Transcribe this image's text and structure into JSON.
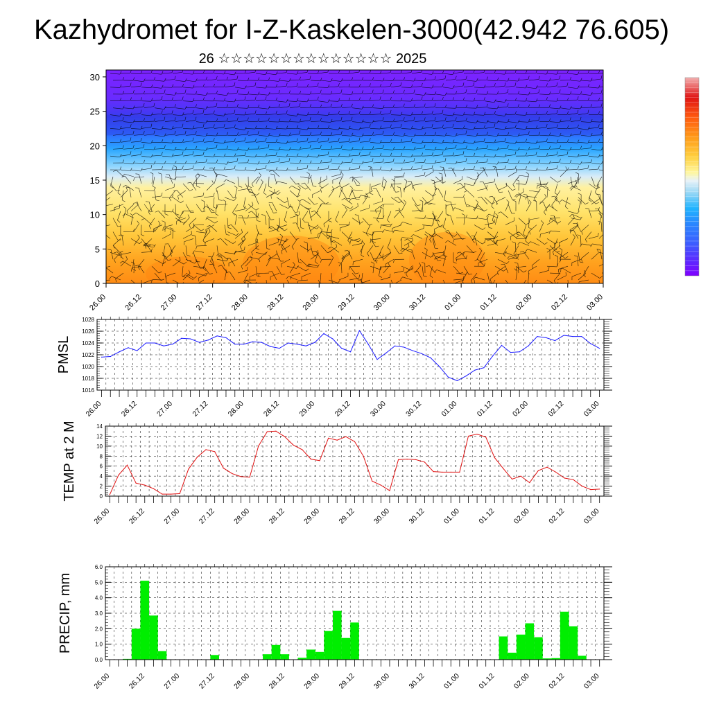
{
  "title": "Kazhydromet for I-Z-Kaskelen-3000(42.942 76.605)",
  "subtitle": "26 ☆☆☆☆☆☆☆☆☆☆☆☆☆☆ 2025",
  "chart_data": [
    {
      "type": "heatmap",
      "description_key": "cross_section",
      "x_tick_labels": [
        "26.00",
        "26.12",
        "27.00",
        "27.12",
        "28.00",
        "28.12",
        "29.00",
        "29.12",
        "30.00",
        "30.12",
        "01.00",
        "01.12",
        "02.00",
        "02.12",
        "03.00"
      ],
      "y_ticks": [
        0,
        5,
        10,
        15,
        20,
        25,
        30
      ],
      "ylim": [
        0,
        31
      ],
      "colorbar": [
        "#7f00ff",
        "#5a2bff",
        "#3d5bff",
        "#2a86ff",
        "#1fb3ff",
        "#62d2ff",
        "#c8eafb",
        "#fff7a0",
        "#ffe860",
        "#ffd040",
        "#ffb020",
        "#ff8a10",
        "#ff5a10",
        "#ee2a10",
        "#d81010",
        "#f0a0a0"
      ],
      "colors": {
        "low_level_warm": "#ff9a1e",
        "mid_level": "#ffea7a",
        "upper_cold": "#5a2bff",
        "top": "#7f22ff"
      }
    },
    {
      "type": "line",
      "ylabel": "PMSL",
      "ylim": [
        1016,
        1028
      ],
      "y_ticks": [
        1016,
        1018,
        1020,
        1022,
        1024,
        1026,
        1028
      ],
      "x_tick_labels": [
        "26.00",
        "26.12",
        "27.00",
        "27.12",
        "28.00",
        "28.12",
        "29.00",
        "29.12",
        "30.00",
        "30.12",
        "01.00",
        "01.12",
        "02.00",
        "02.12",
        "03.00"
      ],
      "line_color": "#1a1aff",
      "series": [
        {
          "values": [
            1021.6,
            1021.7,
            1022.5,
            1023.2,
            1022.7,
            1024.0,
            1024.0,
            1023.5,
            1023.8,
            1024.8,
            1024.7,
            1024.1,
            1024.5,
            1025.2,
            1024.9,
            1023.8,
            1023.8,
            1024.2,
            1024.1,
            1023.4,
            1023.1,
            1024.0,
            1023.8,
            1023.5,
            1024.1,
            1025.6,
            1024.7,
            1023.1,
            1022.5,
            1026.1,
            1023.8,
            1021.2,
            1022.3,
            1023.5,
            1023.3,
            1022.7,
            1022.2,
            1021.5,
            1020.0,
            1018.2,
            1017.6,
            1018.4,
            1019.4,
            1019.8,
            1021.8,
            1023.6,
            1022.4,
            1022.5,
            1023.5,
            1025.1,
            1024.9,
            1024.4,
            1025.3,
            1025.1,
            1025.1,
            1023.9,
            1023.1
          ]
        }
      ]
    },
    {
      "type": "line",
      "ylabel": "TEMP at 2 M",
      "ylim": [
        0,
        14
      ],
      "y_ticks": [
        0,
        2,
        4,
        6,
        8,
        10,
        12,
        14
      ],
      "x_tick_labels": [
        "26.00",
        "26.12",
        "27.00",
        "27.12",
        "28.00",
        "28.12",
        "29.00",
        "29.12",
        "30.00",
        "30.12",
        "01.00",
        "01.12",
        "02.00",
        "02.12",
        "03.00"
      ],
      "line_color": "#e01010",
      "series": [
        {
          "values": [
            0.3,
            4.2,
            6.2,
            2.6,
            2.2,
            1.5,
            0.4,
            0.4,
            0.5,
            5.4,
            7.8,
            9.3,
            8.9,
            5.6,
            4.5,
            3.9,
            3.8,
            10.0,
            12.9,
            13.0,
            11.9,
            10.2,
            9.3,
            7.4,
            7.1,
            11.6,
            11.2,
            11.9,
            10.9,
            8.0,
            3.0,
            2.2,
            1.1,
            7.3,
            7.4,
            7.3,
            6.8,
            4.9,
            4.8,
            4.8,
            4.8,
            12.0,
            12.4,
            11.8,
            7.7,
            5.5,
            3.4,
            4.0,
            2.7,
            5.1,
            5.8,
            4.8,
            3.6,
            3.3,
            2.0,
            1.3,
            1.4
          ]
        }
      ]
    },
    {
      "type": "bar",
      "ylabel": "PRECIP, mm",
      "ylim": [
        0,
        6
      ],
      "y_ticks": [
        0.0,
        1.0,
        2.0,
        3.0,
        4.0,
        5.0,
        6.0
      ],
      "y_tick_labels": [
        "0.0",
        "1.0",
        "2.0",
        "3.0",
        "4.0",
        "5.0",
        "6.0"
      ],
      "x_tick_labels": [
        "26.00",
        "26.12",
        "27.00",
        "27.12",
        "28.00",
        "28.12",
        "29.00",
        "29.12",
        "30.00",
        "30.12",
        "01.00",
        "01.12",
        "02.00",
        "02.12",
        "03.00"
      ],
      "bar_color": "#00ee00",
      "series": [
        {
          "values": [
            0,
            0,
            0.05,
            2.0,
            5.1,
            2.85,
            0.55,
            0,
            0,
            0,
            0,
            0,
            0.3,
            0,
            0,
            0,
            0,
            0,
            0.35,
            0.95,
            0.35,
            0,
            0.12,
            0.65,
            0.5,
            1.85,
            3.15,
            1.4,
            2.4,
            0,
            0,
            0,
            0,
            0,
            0,
            0,
            0,
            0,
            0,
            0,
            0,
            0,
            0,
            0,
            0,
            1.5,
            0.45,
            1.62,
            2.35,
            1.45,
            0.08,
            0.1,
            3.1,
            2.15,
            0.25,
            0,
            0
          ]
        }
      ]
    }
  ]
}
